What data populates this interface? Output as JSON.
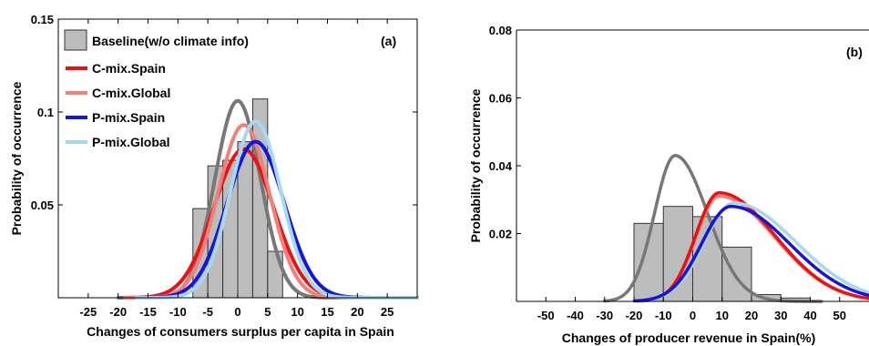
{
  "chart_data": [
    {
      "type": "histogram",
      "panel_label": "(a)",
      "xlabel": "Changes of consumers surplus per capita in Spain",
      "ylabel": "Probability of occurrence",
      "xlim": [
        -30,
        30
      ],
      "ylim": [
        0,
        0.15
      ],
      "xticks": [
        -25,
        -20,
        -15,
        -10,
        -5,
        0,
        5,
        10,
        15,
        20,
        25
      ],
      "yticks": [
        0.05,
        0.1,
        0.15
      ],
      "ytick_labels": [
        "0.05",
        "0.1",
        "0.15"
      ],
      "legend_position": "top-left",
      "histogram": {
        "name": "Baseline(w/o climate info)",
        "color": "#bdbdbd",
        "bin_edges": [
          -7.5,
          -5,
          -2.5,
          0,
          2.5,
          5,
          7.5
        ],
        "values": [
          0.048,
          0.071,
          0.074,
          0.084,
          0.107,
          0.025
        ]
      },
      "series": [
        {
          "name": "",
          "color": "#777777",
          "dist": "normal",
          "mean": 0,
          "sd": 3.8,
          "peak": 0.106
        },
        {
          "name": "C-mix.Spain",
          "color": "#ee1111",
          "dist": "normal",
          "mean": 1.0,
          "sd": 5.0,
          "peak": 0.08
        },
        {
          "name": "C-mix.Global",
          "color": "#f08078",
          "dist": "normal",
          "mean": 1.0,
          "sd": 4.3,
          "peak": 0.093
        },
        {
          "name": "P-mix.Spain",
          "color": "#1414dd",
          "dist": "normal",
          "mean": 3.0,
          "sd": 4.8,
          "peak": 0.084
        },
        {
          "name": "P-mix.Global",
          "color": "#a8d8f0",
          "dist": "normal",
          "mean": 3.0,
          "sd": 4.2,
          "peak": 0.095
        }
      ]
    },
    {
      "type": "histogram",
      "panel_label": "(b)",
      "xlabel": "Changes of producer revenue in Spain(%)",
      "ylabel": "Probability of occurrence",
      "xlim": [
        -60,
        60
      ],
      "ylim": [
        0,
        0.08
      ],
      "xticks": [
        -50,
        -40,
        -30,
        -20,
        -10,
        0,
        10,
        20,
        30,
        40,
        50
      ],
      "yticks": [
        0.02,
        0.04,
        0.06,
        0.08
      ],
      "ytick_labels": [
        "0.02",
        "0.04",
        "0.06",
        "0.08"
      ],
      "histogram": {
        "color": "#bdbdbd",
        "bin_edges": [
          -20,
          -10,
          0,
          10,
          20,
          30,
          40
        ],
        "values": [
          0.023,
          0.028,
          0.025,
          0.016,
          0.002,
          0.001
        ]
      },
      "series": [
        {
          "name": "",
          "color": "#777777",
          "dist": "skewed",
          "mode": -6,
          "sd_left": 7,
          "sd_right": 11,
          "peak": 0.043
        },
        {
          "name": "",
          "color": "#f08078",
          "dist": "skewed",
          "mode": 9,
          "sd_left": 8,
          "sd_right": 19,
          "peak": 0.031
        },
        {
          "name": "",
          "color": "#ee1111",
          "dist": "skewed",
          "mode": 9,
          "sd_left": 8,
          "sd_right": 19,
          "peak": 0.032
        },
        {
          "name": "",
          "color": "#a8d8f0",
          "dist": "skewed",
          "mode": 14,
          "sd_left": 10,
          "sd_right": 21,
          "peak": 0.029
        },
        {
          "name": "",
          "color": "#1414dd",
          "dist": "skewed",
          "mode": 13,
          "sd_left": 10,
          "sd_right": 20,
          "peak": 0.028
        }
      ]
    }
  ]
}
